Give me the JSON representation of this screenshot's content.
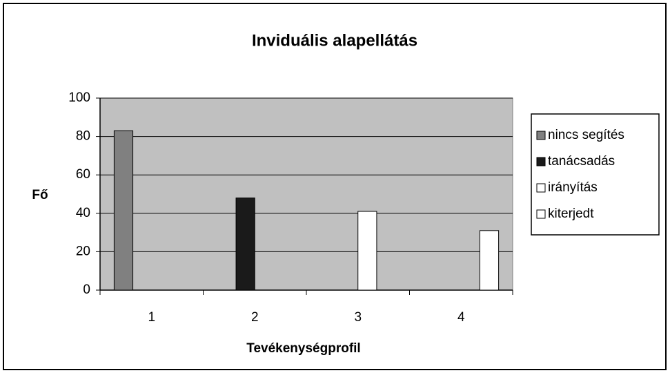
{
  "chart_data": {
    "type": "bar",
    "title": "Inviduális alapellátás",
    "x_label": "Tevékenységprofil",
    "y_label": "Fő",
    "categories": [
      "1",
      "2",
      "3",
      "4"
    ],
    "series": [
      {
        "name": "nincs segítés",
        "color": "#808080",
        "values": [
          83,
          null,
          null,
          null
        ]
      },
      {
        "name": "tanácsadás",
        "color": "#1a1a1a",
        "values": [
          null,
          48,
          null,
          null
        ]
      },
      {
        "name": "irányítás",
        "color": "#ffffff",
        "values": [
          null,
          null,
          41,
          null
        ]
      },
      {
        "name": "kiterjedt",
        "color": "#ffffff",
        "values": [
          null,
          null,
          null,
          31
        ]
      }
    ],
    "ylim": [
      0,
      100
    ],
    "yticks": [
      0,
      20,
      40,
      60,
      80,
      100
    ],
    "grid": true,
    "legend": "right"
  }
}
